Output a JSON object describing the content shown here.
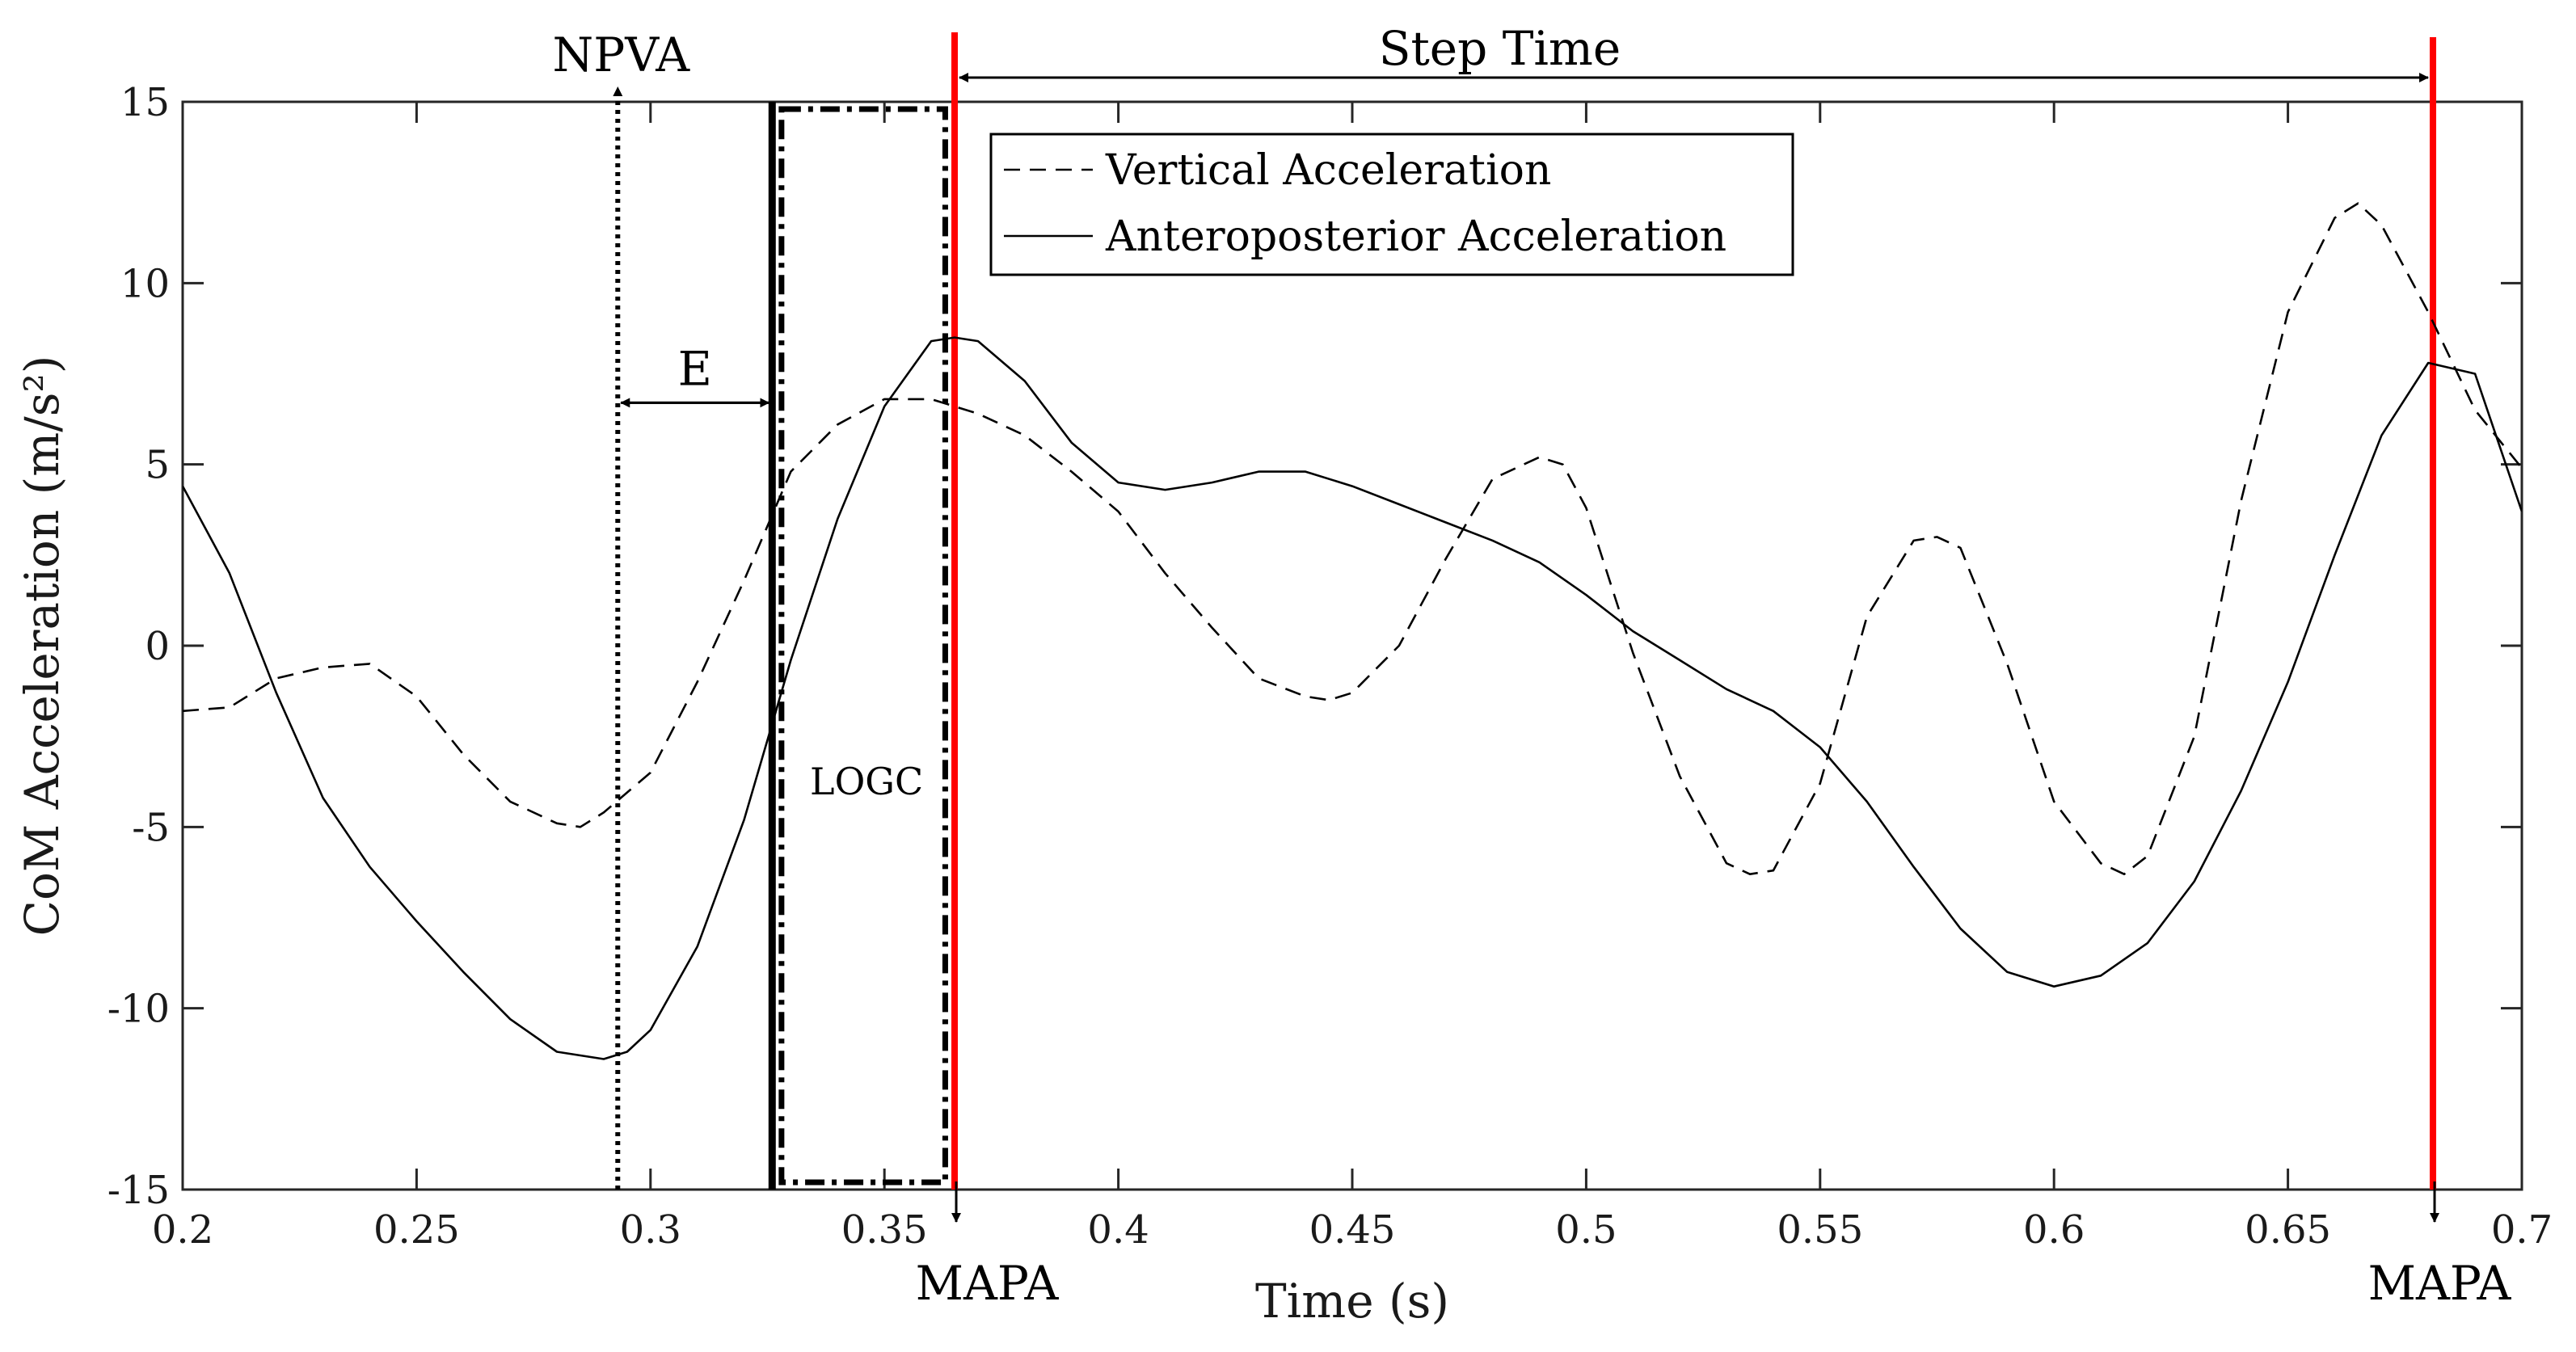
{
  "chart_data": {
    "type": "line",
    "title": "",
    "xlabel": "Time (s)",
    "ylabel": "CoM Acceleration (m/s²)",
    "xlim": [
      0.2,
      0.7
    ],
    "ylim": [
      -15,
      15
    ],
    "xticks": [
      0.2,
      0.25,
      0.3,
      0.35,
      0.4,
      0.45,
      0.5,
      0.55,
      0.6,
      0.65,
      0.7
    ],
    "xtick_labels": [
      "0.2",
      "0.25",
      "0.3",
      "0.35",
      "0.4",
      "0.45",
      "0.5",
      "0.55",
      "0.6",
      "0.65",
      "0.7"
    ],
    "yticks": [
      -15,
      -10,
      -5,
      0,
      5,
      10,
      15
    ],
    "ytick_labels": [
      "-15",
      "-10",
      "-5",
      "0",
      "5",
      "10",
      "15"
    ],
    "grid": false,
    "legend_position": "top-center",
    "series": [
      {
        "name": "Vertical Acceleration",
        "style": "dashed",
        "color": "#000000",
        "x": [
          0.2,
          0.21,
          0.22,
          0.23,
          0.24,
          0.25,
          0.26,
          0.27,
          0.28,
          0.285,
          0.29,
          0.3,
          0.31,
          0.32,
          0.33,
          0.34,
          0.35,
          0.36,
          0.37,
          0.38,
          0.39,
          0.4,
          0.41,
          0.42,
          0.43,
          0.44,
          0.445,
          0.45,
          0.46,
          0.47,
          0.48,
          0.49,
          0.495,
          0.5,
          0.51,
          0.52,
          0.53,
          0.535,
          0.54,
          0.55,
          0.56,
          0.57,
          0.575,
          0.58,
          0.59,
          0.6,
          0.61,
          0.615,
          0.62,
          0.63,
          0.64,
          0.65,
          0.66,
          0.665,
          0.67,
          0.68,
          0.69,
          0.7
        ],
        "y": [
          -1.8,
          -1.7,
          -0.9,
          -0.6,
          -0.5,
          -1.4,
          -3.0,
          -4.3,
          -4.9,
          -5.0,
          -4.6,
          -3.5,
          -1.0,
          1.8,
          4.8,
          6.1,
          6.8,
          6.8,
          6.4,
          5.8,
          4.8,
          3.7,
          2.0,
          0.5,
          -0.9,
          -1.4,
          -1.5,
          -1.3,
          0.0,
          2.4,
          4.6,
          5.2,
          5.0,
          3.8,
          -0.2,
          -3.6,
          -6.0,
          -6.3,
          -6.2,
          -3.8,
          0.8,
          2.9,
          3.0,
          2.7,
          -0.5,
          -4.3,
          -6.0,
          -6.3,
          -5.8,
          -2.5,
          4.0,
          9.2,
          11.8,
          12.2,
          11.6,
          9.2,
          6.5,
          4.9
        ]
      },
      {
        "name": "Anteroposterior Acceleration",
        "style": "solid",
        "color": "#000000",
        "x": [
          0.2,
          0.21,
          0.22,
          0.23,
          0.24,
          0.25,
          0.26,
          0.27,
          0.28,
          0.29,
          0.295,
          0.3,
          0.31,
          0.32,
          0.325,
          0.33,
          0.34,
          0.35,
          0.36,
          0.365,
          0.37,
          0.38,
          0.39,
          0.4,
          0.41,
          0.42,
          0.43,
          0.44,
          0.45,
          0.46,
          0.47,
          0.48,
          0.49,
          0.5,
          0.51,
          0.52,
          0.53,
          0.54,
          0.55,
          0.56,
          0.57,
          0.58,
          0.59,
          0.6,
          0.61,
          0.62,
          0.63,
          0.64,
          0.65,
          0.66,
          0.67,
          0.68,
          0.69,
          0.7
        ],
        "y": [
          4.4,
          2.0,
          -1.3,
          -4.2,
          -6.1,
          -7.6,
          -9.0,
          -10.3,
          -11.2,
          -11.4,
          -11.2,
          -10.6,
          -8.3,
          -4.8,
          -2.6,
          -0.4,
          3.5,
          6.6,
          8.4,
          8.5,
          8.4,
          7.3,
          5.6,
          4.5,
          4.3,
          4.5,
          4.8,
          4.8,
          4.4,
          3.9,
          3.4,
          2.9,
          2.3,
          1.4,
          0.4,
          -0.4,
          -1.2,
          -1.8,
          -2.8,
          -4.3,
          -6.1,
          -7.8,
          -9.0,
          -9.4,
          -9.1,
          -8.2,
          -6.5,
          -4.0,
          -1.0,
          2.5,
          5.8,
          7.8,
          7.5,
          3.7
        ]
      }
    ],
    "vertical_markers": [
      {
        "name": "NPVA",
        "x": 0.293,
        "style": "dotted",
        "color": "#000000",
        "label": "NPVA"
      },
      {
        "name": "LOGC start",
        "x": 0.326,
        "style": "solid-thick",
        "color": "#000000"
      },
      {
        "name": "MAPA 1",
        "x": 0.365,
        "style": "solid",
        "color": "#ff0000",
        "label": "MAPA"
      },
      {
        "name": "MAPA 2",
        "x": 0.681,
        "style": "solid",
        "color": "#ff0000",
        "label": "MAPA"
      }
    ],
    "logc_region": {
      "x0": 0.328,
      "x1": 0.363,
      "y0": -14.8,
      "y1": 14.8,
      "label": "LOGC"
    },
    "annotations": {
      "npva_label": "NPVA",
      "e_label": "E",
      "step_time_label": "Step Time",
      "logc_label": "LOGC",
      "mapa_label_1": "MAPA",
      "mapa_label_2": "MAPA"
    }
  }
}
